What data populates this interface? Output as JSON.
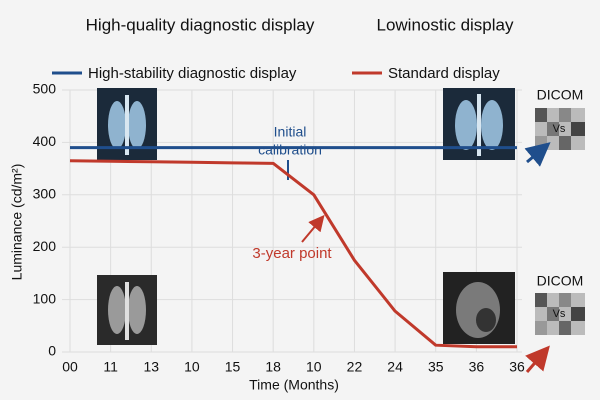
{
  "chart_data": {
    "type": "line",
    "headers": [
      "High-quality diagnostic display",
      "Lowinostic display"
    ],
    "x_label": "Time (Months)",
    "y_label": "Luminance (cd/m²)",
    "categories": [
      "00",
      "11",
      "13",
      "10",
      "15",
      "18",
      "10",
      "22",
      "24",
      "35",
      "36",
      "36"
    ],
    "series": [
      {
        "name": "High-stability diagnostic display",
        "color": "#1f4e8c",
        "values": [
          390,
          390,
          390,
          390,
          390,
          390,
          390,
          390,
          390,
          390,
          390,
          390
        ]
      },
      {
        "name": "Standard display",
        "color": "#c0392b",
        "values": [
          365,
          364,
          363,
          362,
          361,
          360,
          300,
          175,
          78,
          13,
          10,
          10
        ]
      }
    ],
    "ylim": [
      0,
      500
    ],
    "yticks": [
      0,
      100,
      200,
      300,
      400,
      500
    ],
    "grid": true,
    "annotations": [
      "Initial",
      "calibration",
      "3-year point"
    ],
    "side_labels": [
      "DICOM",
      "Vs",
      "DICOM",
      "Vs"
    ]
  }
}
